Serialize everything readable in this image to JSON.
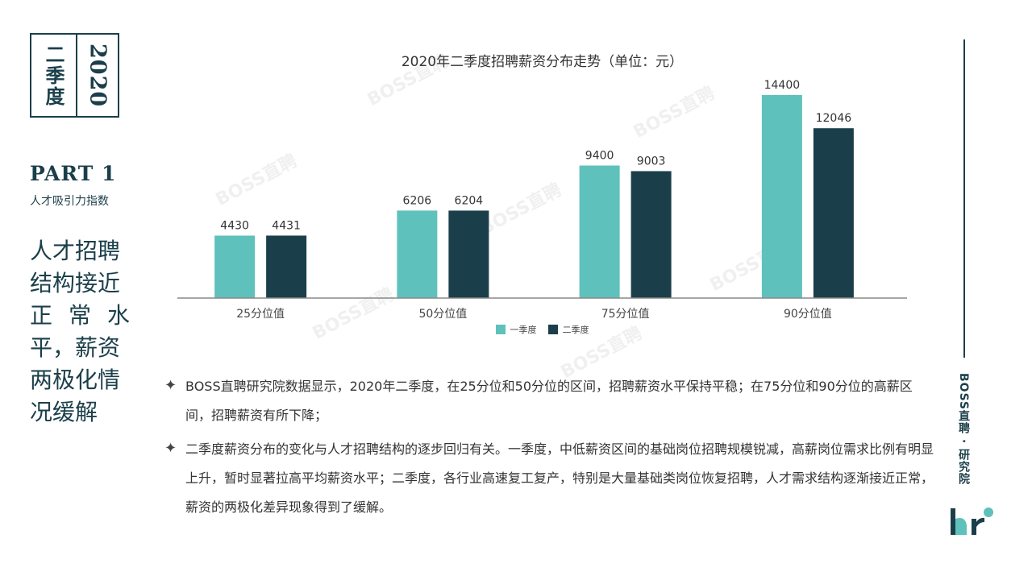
{
  "badge": {
    "year": "2020",
    "season": "二季度"
  },
  "part": {
    "title": "PART 1",
    "subtitle": "人才吸引力指数"
  },
  "headline": {
    "lines": [
      "人才招聘",
      "结构接近",
      "正 常 水",
      "平，薪资",
      "两极化情",
      "况缓解"
    ]
  },
  "watermark": "BOSS直聘",
  "brand_vertical": "BOSS直聘 · 研究院",
  "colors": {
    "q1": "#5fc1bb",
    "q2": "#1b3f4a",
    "dark": "#1b3f4a",
    "axis": "#888888"
  },
  "chart_data": {
    "type": "bar",
    "title": "2020年二季度招聘薪资分布走势（单位：元）",
    "categories": [
      "25分位值",
      "50分位值",
      "75分位值",
      "90分位值"
    ],
    "series": [
      {
        "name": "一季度",
        "values": [
          4430,
          6206,
          9400,
          14400
        ]
      },
      {
        "name": "二季度",
        "values": [
          4431,
          6204,
          9003,
          12046
        ]
      }
    ],
    "ylim": [
      0,
      16000
    ],
    "grid": false,
    "legend": "bottom"
  },
  "bullets": [
    {
      "icon": "star-bullet-icon",
      "symbol": "✦",
      "text": "BOSS直聘研究院数据显示，2020年二季度，在25分位和50分位的区间，招聘薪资水平保持平稳；在75分位和90分位的高薪区间，招聘薪资有所下降；"
    },
    {
      "icon": "star-bullet-icon",
      "symbol": "✦",
      "text": "二季度薪资分布的变化与人才招聘结构的逐步回归有关。一季度，中低薪资区间的基础岗位招聘规模锐减，高薪岗位需求比例有明显上升，暂时显著拉高平均薪资水平；二季度，各行业高速复工复产，特别是大量基础类岗位恢复招聘，人才需求结构逐渐接近正常，薪资的两极化差异现象得到了缓解。"
    }
  ]
}
